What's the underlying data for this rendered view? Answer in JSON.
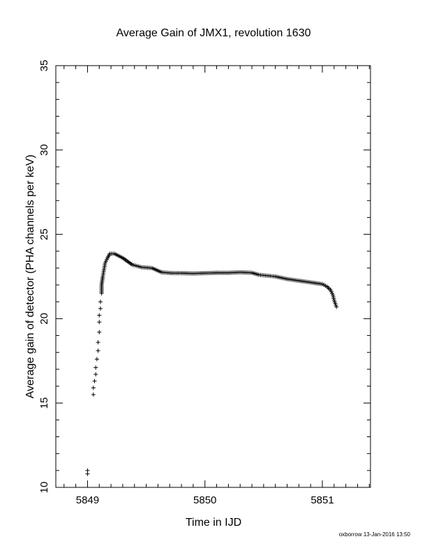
{
  "chart_data": {
    "type": "scatter",
    "title": "Average Gain of JMX1, revolution 1630",
    "xlabel": "Time in IJD",
    "ylabel": "Average gain of detector (PHA channels per keV)",
    "xlim": [
      5848.73,
      5851.41
    ],
    "ylim": [
      10,
      35
    ],
    "xticks": [
      5849,
      5850,
      5851
    ],
    "yticks": [
      10,
      15,
      20,
      25,
      30,
      35
    ],
    "marker": "plus",
    "marker_color": "#000000",
    "grid": false,
    "legend": "none",
    "series": [
      {
        "x": [
          5849.0,
          5849.0,
          5849.05,
          5849.05,
          5849.06,
          5849.07,
          5849.07,
          5849.08,
          5849.09,
          5849.09,
          5849.1,
          5849.1,
          5849.1,
          5849.11,
          5849.11,
          5849.12,
          5849.12,
          5849.13,
          5849.14,
          5849.15,
          5849.17,
          5849.19,
          5849.23,
          5849.3,
          5849.38,
          5849.46,
          5849.55,
          5849.63,
          5849.72,
          5849.8,
          5849.9,
          5850.0,
          5850.1,
          5850.2,
          5850.3,
          5850.4,
          5850.46,
          5850.53,
          5850.6,
          5850.7,
          5850.8,
          5850.9,
          5851.0,
          5851.04,
          5851.07,
          5851.09,
          5851.1,
          5851.11,
          5851.12
        ],
        "y": [
          10.8,
          11.0,
          15.5,
          15.9,
          16.3,
          16.7,
          17.1,
          17.6,
          18.1,
          18.6,
          19.2,
          19.8,
          20.2,
          20.6,
          21.0,
          21.5,
          22.0,
          22.5,
          22.9,
          23.3,
          23.6,
          23.85,
          23.85,
          23.6,
          23.2,
          23.05,
          23.0,
          22.75,
          22.7,
          22.7,
          22.68,
          22.7,
          22.72,
          22.72,
          22.75,
          22.72,
          22.6,
          22.55,
          22.5,
          22.35,
          22.25,
          22.15,
          22.05,
          21.9,
          21.7,
          21.4,
          21.1,
          20.9,
          20.7
        ]
      }
    ]
  },
  "footer": {
    "stamp": "oxborrow 13-Jan-2016 13:50"
  }
}
